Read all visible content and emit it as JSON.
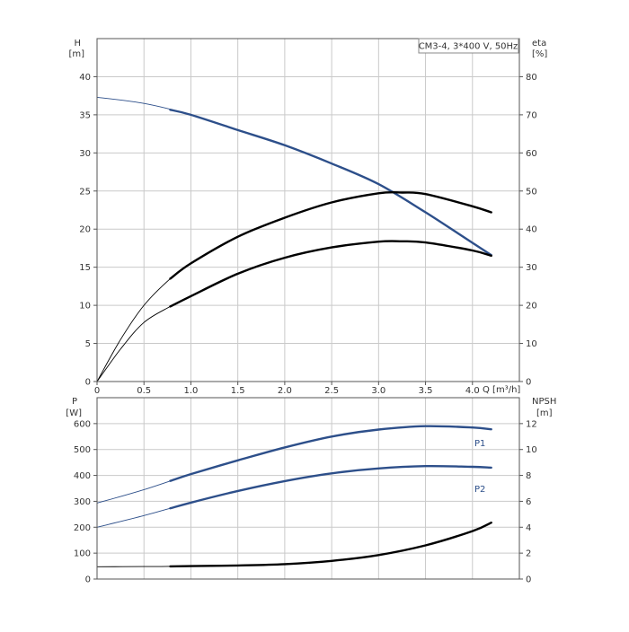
{
  "chart_data": [
    {
      "type": "line",
      "title": "CM3-4, 3*400 V, 50Hz",
      "xlabel": "Q [m³/h]",
      "xlim": [
        0,
        4.5
      ],
      "x_ticks": [
        "0",
        "0.5",
        "1.0",
        "1.5",
        "2.0",
        "2.5",
        "3.0",
        "3.5",
        "4.0"
      ],
      "ylabel_left": [
        "H",
        "[m]"
      ],
      "ylim_left": [
        0,
        45
      ],
      "y_ticks_left": [
        "0",
        "5",
        "10",
        "15",
        "20",
        "25",
        "30",
        "35",
        "40"
      ],
      "ylabel_right": [
        "eta",
        "[%]"
      ],
      "ylim_right": [
        0,
        90
      ],
      "y_ticks_right": [
        "0",
        "10",
        "20",
        "30",
        "40",
        "50",
        "60",
        "70",
        "80"
      ],
      "grid": true,
      "series": [
        {
          "axis": "left",
          "color": "#2d4f8a",
          "duty_range": [
            0.78,
            4.2
          ],
          "x": [
            0,
            0.5,
            1.0,
            1.5,
            2.0,
            2.5,
            3.0,
            3.5,
            4.0,
            4.2
          ],
          "values": [
            37.3,
            36.5,
            35.0,
            33.0,
            31.0,
            28.6,
            25.9,
            22.2,
            18.2,
            16.6
          ]
        },
        {
          "axis": "right",
          "color": "#000000",
          "duty_range": [
            0.78,
            4.2
          ],
          "x": [
            0,
            0.25,
            0.5,
            0.78,
            1.0,
            1.5,
            2.0,
            2.5,
            3.0,
            3.25,
            3.5,
            4.0,
            4.2
          ],
          "values": [
            0,
            11,
            20,
            27,
            31,
            38,
            43,
            47,
            49.4,
            49.6,
            49.2,
            46,
            44.4
          ]
        },
        {
          "axis": "right",
          "color": "#000000",
          "duty_range": [
            0.78,
            4.2
          ],
          "x": [
            0,
            0.25,
            0.5,
            0.78,
            1.0,
            1.5,
            2.0,
            2.5,
            3.0,
            3.25,
            3.5,
            4.0,
            4.2
          ],
          "values": [
            0,
            8.5,
            15.5,
            19.7,
            22.4,
            28.3,
            32.5,
            35.2,
            36.7,
            36.8,
            36.5,
            34.4,
            33.0
          ]
        }
      ]
    },
    {
      "type": "line",
      "xlim": [
        0,
        4.5
      ],
      "ylabel_left": [
        "P",
        "[W]"
      ],
      "ylim_left": [
        0,
        700
      ],
      "y_ticks_left": [
        "0",
        "100",
        "200",
        "300",
        "400",
        "500",
        "600"
      ],
      "ylabel_right": [
        "NPSH",
        "[m]"
      ],
      "ylim_right": [
        0,
        14
      ],
      "y_ticks_right": [
        "0",
        "2",
        "4",
        "6",
        "8",
        "10",
        "12"
      ],
      "grid": true,
      "series": [
        {
          "name": "P1",
          "axis": "left",
          "color": "#2d4f8a",
          "duty_range": [
            0.78,
            4.2
          ],
          "x": [
            0,
            0.5,
            1.0,
            1.5,
            2.0,
            2.5,
            3.0,
            3.5,
            4.0,
            4.2
          ],
          "values": [
            293,
            345,
            405,
            458,
            508,
            550,
            577,
            590,
            585,
            578
          ]
        },
        {
          "name": "P2",
          "axis": "left",
          "color": "#2d4f8a",
          "duty_range": [
            0.78,
            4.2
          ],
          "x": [
            0,
            0.5,
            1.0,
            1.5,
            2.0,
            2.5,
            3.0,
            3.5,
            4.0,
            4.2
          ],
          "values": [
            200,
            245,
            295,
            340,
            378,
            408,
            427,
            436,
            433,
            430
          ]
        },
        {
          "axis": "right",
          "color": "#000000",
          "duty_range": [
            0.78,
            4.2
          ],
          "x": [
            0,
            0.5,
            0.78,
            1.0,
            1.5,
            2.0,
            2.5,
            3.0,
            3.5,
            4.0,
            4.2
          ],
          "values": [
            0.95,
            0.96,
            0.98,
            1.0,
            1.05,
            1.15,
            1.4,
            1.85,
            2.6,
            3.7,
            4.35
          ]
        }
      ]
    }
  ]
}
